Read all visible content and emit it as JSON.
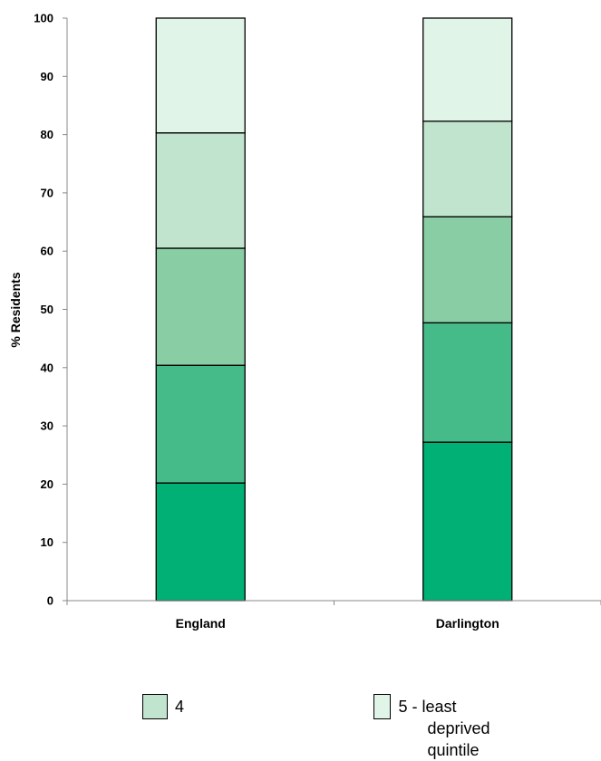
{
  "chart_data": {
    "type": "bar",
    "stacked": true,
    "ylabel": "% Residents",
    "ylim": [
      0,
      100
    ],
    "yticks": [
      0,
      10,
      20,
      30,
      40,
      50,
      60,
      70,
      80,
      90,
      100
    ],
    "categories": [
      "England",
      "Darlington"
    ],
    "series": [
      {
        "values": [
          20.2,
          27.2
        ],
        "color": "#00b074"
      },
      {
        "values": [
          20.2,
          20.5
        ],
        "color": "#45bb8a"
      },
      {
        "values": [
          20.1,
          18.2
        ],
        "color": "#88cda3"
      },
      {
        "name": "4",
        "values": [
          19.8,
          16.4
        ],
        "color": "#c1e4cf"
      },
      {
        "name": "5 - least deprived quintile",
        "values": [
          19.7,
          17.7
        ],
        "color": "#e1f4e8"
      }
    ],
    "grid": false
  },
  "legend": {
    "item4_label": "4",
    "item5_line1": "5 - least",
    "item5_line2": "deprived quintile"
  }
}
